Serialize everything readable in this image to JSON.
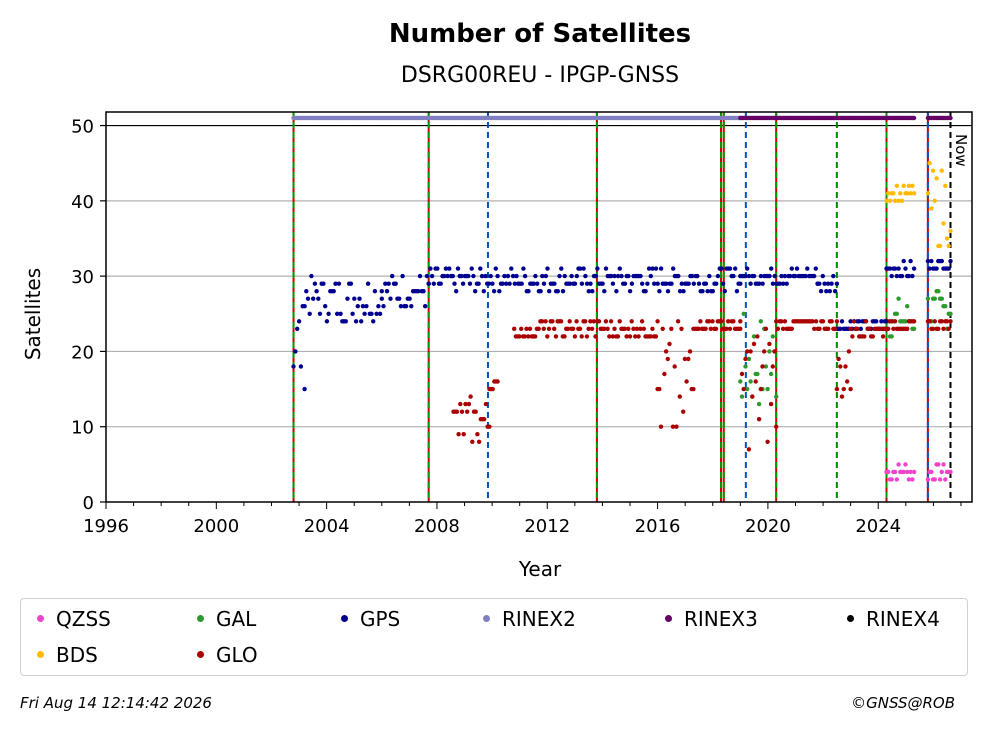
{
  "chart_data": {
    "type": "scatter",
    "title": "Number of Satellites",
    "subtitle": "DSRG00REU - IPGP-GNSS",
    "xlabel": "Year",
    "ylabel": "Satellites",
    "xlim": [
      1996,
      2027.4
    ],
    "ylim": [
      0,
      51.8
    ],
    "x_ticks": [
      1996,
      2000,
      2004,
      2008,
      2012,
      2016,
      2020,
      2024
    ],
    "y_ticks": [
      0,
      10,
      20,
      30,
      40,
      50
    ],
    "grid": "horizontal",
    "now_label": "Now",
    "now_x": 2026.62,
    "legend_placement": "below",
    "series": [
      {
        "name": "QZSS",
        "color": "#ee44cc",
        "segments": [
          [
            2024.3,
            2025.3,
            3,
            5
          ],
          [
            2025.8,
            2026.62,
            3,
            5
          ]
        ]
      },
      {
        "name": "GAL",
        "color": "#2e9a2e",
        "segments": [
          [
            2019.0,
            2020.3,
            12,
            25
          ],
          [
            2024.3,
            2025.3,
            22,
            27
          ],
          [
            2025.8,
            2026.62,
            23,
            28
          ]
        ]
      },
      {
        "name": "GPS",
        "color": "#000090",
        "segments": [
          [
            2002.8,
            2003.2,
            15,
            27
          ],
          [
            2003.2,
            2006.0,
            24,
            30
          ],
          [
            2006.0,
            2007.7,
            26,
            30
          ],
          [
            2007.7,
            2019.0,
            28,
            31
          ],
          [
            2019.0,
            2021.8,
            29,
            31
          ],
          [
            2021.8,
            2022.5,
            28,
            30
          ],
          [
            2022.5,
            2024.3,
            23,
            24
          ],
          [
            2024.3,
            2025.3,
            30,
            32
          ],
          [
            2025.8,
            2026.62,
            31,
            32
          ]
        ]
      },
      {
        "name": "RINEX2",
        "color": "#8080c0",
        "segments": [
          [
            2002.8,
            2019.0,
            50.5,
            51
          ]
        ]
      },
      {
        "name": "RINEX3",
        "color": "#660066",
        "segments": [
          [
            2019.0,
            2025.3,
            50.5,
            51
          ],
          [
            2025.8,
            2026.62,
            50.5,
            51
          ]
        ]
      },
      {
        "name": "RINEX4",
        "color": "#000000",
        "segments": []
      },
      {
        "name": "BDS",
        "color": "#ffbb00",
        "segments": [
          [
            2024.3,
            2025.3,
            40,
            42
          ],
          [
            2025.8,
            2026.62,
            34,
            45
          ]
        ]
      },
      {
        "name": "GLO",
        "color": "#aa0000",
        "segments": [
          [
            2008.6,
            2009.9,
            7,
            14
          ],
          [
            2009.9,
            2010.2,
            15,
            16
          ],
          [
            2010.8,
            2011.5,
            22,
            23
          ],
          [
            2011.5,
            2016.0,
            22,
            24
          ],
          [
            2016.0,
            2017.3,
            6,
            24
          ],
          [
            2017.3,
            2019.0,
            23,
            24
          ],
          [
            2019.0,
            2020.3,
            7,
            24
          ],
          [
            2020.3,
            2022.5,
            23,
            24
          ],
          [
            2022.5,
            2023.0,
            13,
            21
          ],
          [
            2023.0,
            2024.3,
            22,
            24
          ],
          [
            2024.3,
            2025.3,
            23,
            24
          ],
          [
            2025.8,
            2026.62,
            23,
            24
          ]
        ]
      }
    ],
    "vlines": [
      {
        "x": 2002.8,
        "style": "red-green"
      },
      {
        "x": 2007.7,
        "style": "red-green"
      },
      {
        "x": 2009.85,
        "style": "blue"
      },
      {
        "x": 2013.8,
        "style": "red-green"
      },
      {
        "x": 2018.3,
        "style": "red-green"
      },
      {
        "x": 2018.4,
        "style": "red-green"
      },
      {
        "x": 2019.2,
        "style": "blue"
      },
      {
        "x": 2020.3,
        "style": "red-green"
      },
      {
        "x": 2022.5,
        "style": "green"
      },
      {
        "x": 2024.3,
        "style": "red-green"
      },
      {
        "x": 2025.8,
        "style": "red-blue"
      }
    ]
  },
  "legend": {
    "items": [
      {
        "label": "QZSS",
        "color": "#ee44cc"
      },
      {
        "label": "GAL",
        "color": "#2e9a2e"
      },
      {
        "label": "GPS",
        "color": "#000090"
      },
      {
        "label": "RINEX2",
        "color": "#8080c0"
      },
      {
        "label": "RINEX3",
        "color": "#660066"
      },
      {
        "label": "RINEX4",
        "color": "#000000"
      },
      {
        "label": "BDS",
        "color": "#ffbb00"
      },
      {
        "label": "GLO",
        "color": "#aa0000"
      }
    ]
  },
  "footer": {
    "date": "Fri Aug 14 12:14:42 2026",
    "credit": "©GNSS@ROB"
  }
}
